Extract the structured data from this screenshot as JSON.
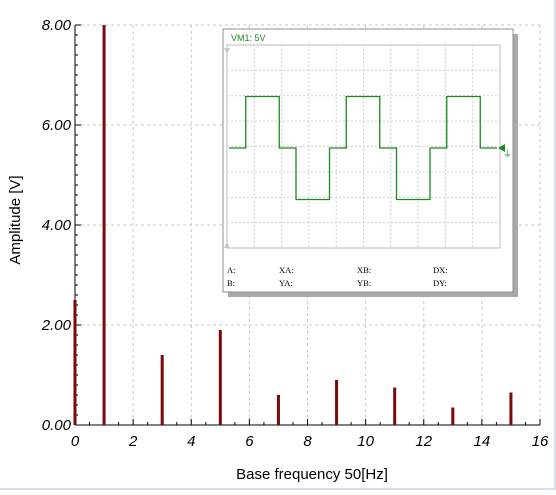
{
  "chart_data": {
    "type": "bar",
    "xlabel": "Base frequency 50[Hz]",
    "ylabel": "Amplitude [V]",
    "xlim": [
      0,
      16
    ],
    "ylim": [
      0,
      8
    ],
    "grid": true,
    "x_ticks": [
      "0",
      "2",
      "4",
      "6",
      "8",
      "10",
      "12",
      "14",
      "16"
    ],
    "y_ticks": [
      "0.00",
      "2.00",
      "4.00",
      "6.00",
      "8.00"
    ],
    "bar_color": "#7a0a0a",
    "x": [
      0,
      1,
      3,
      5,
      7,
      9,
      11,
      13,
      15
    ],
    "values": [
      2.5,
      8.0,
      1.4,
      1.9,
      0.6,
      0.9,
      0.75,
      0.35,
      0.65
    ]
  },
  "inset": {
    "channel_label": "VM1: 5V",
    "trace_color": "#1a8a1a",
    "waveform": [
      0,
      1,
      1,
      0,
      -1,
      -1,
      0,
      1,
      1,
      0,
      -1,
      -1,
      0,
      1,
      1,
      0
    ],
    "readouts": {
      "a": "A:",
      "b": "B:",
      "xa": "XA:",
      "ya": "YA:",
      "xb": "XB:",
      "yb": "YB:",
      "dx": "DX:",
      "dy": "DY:"
    }
  }
}
